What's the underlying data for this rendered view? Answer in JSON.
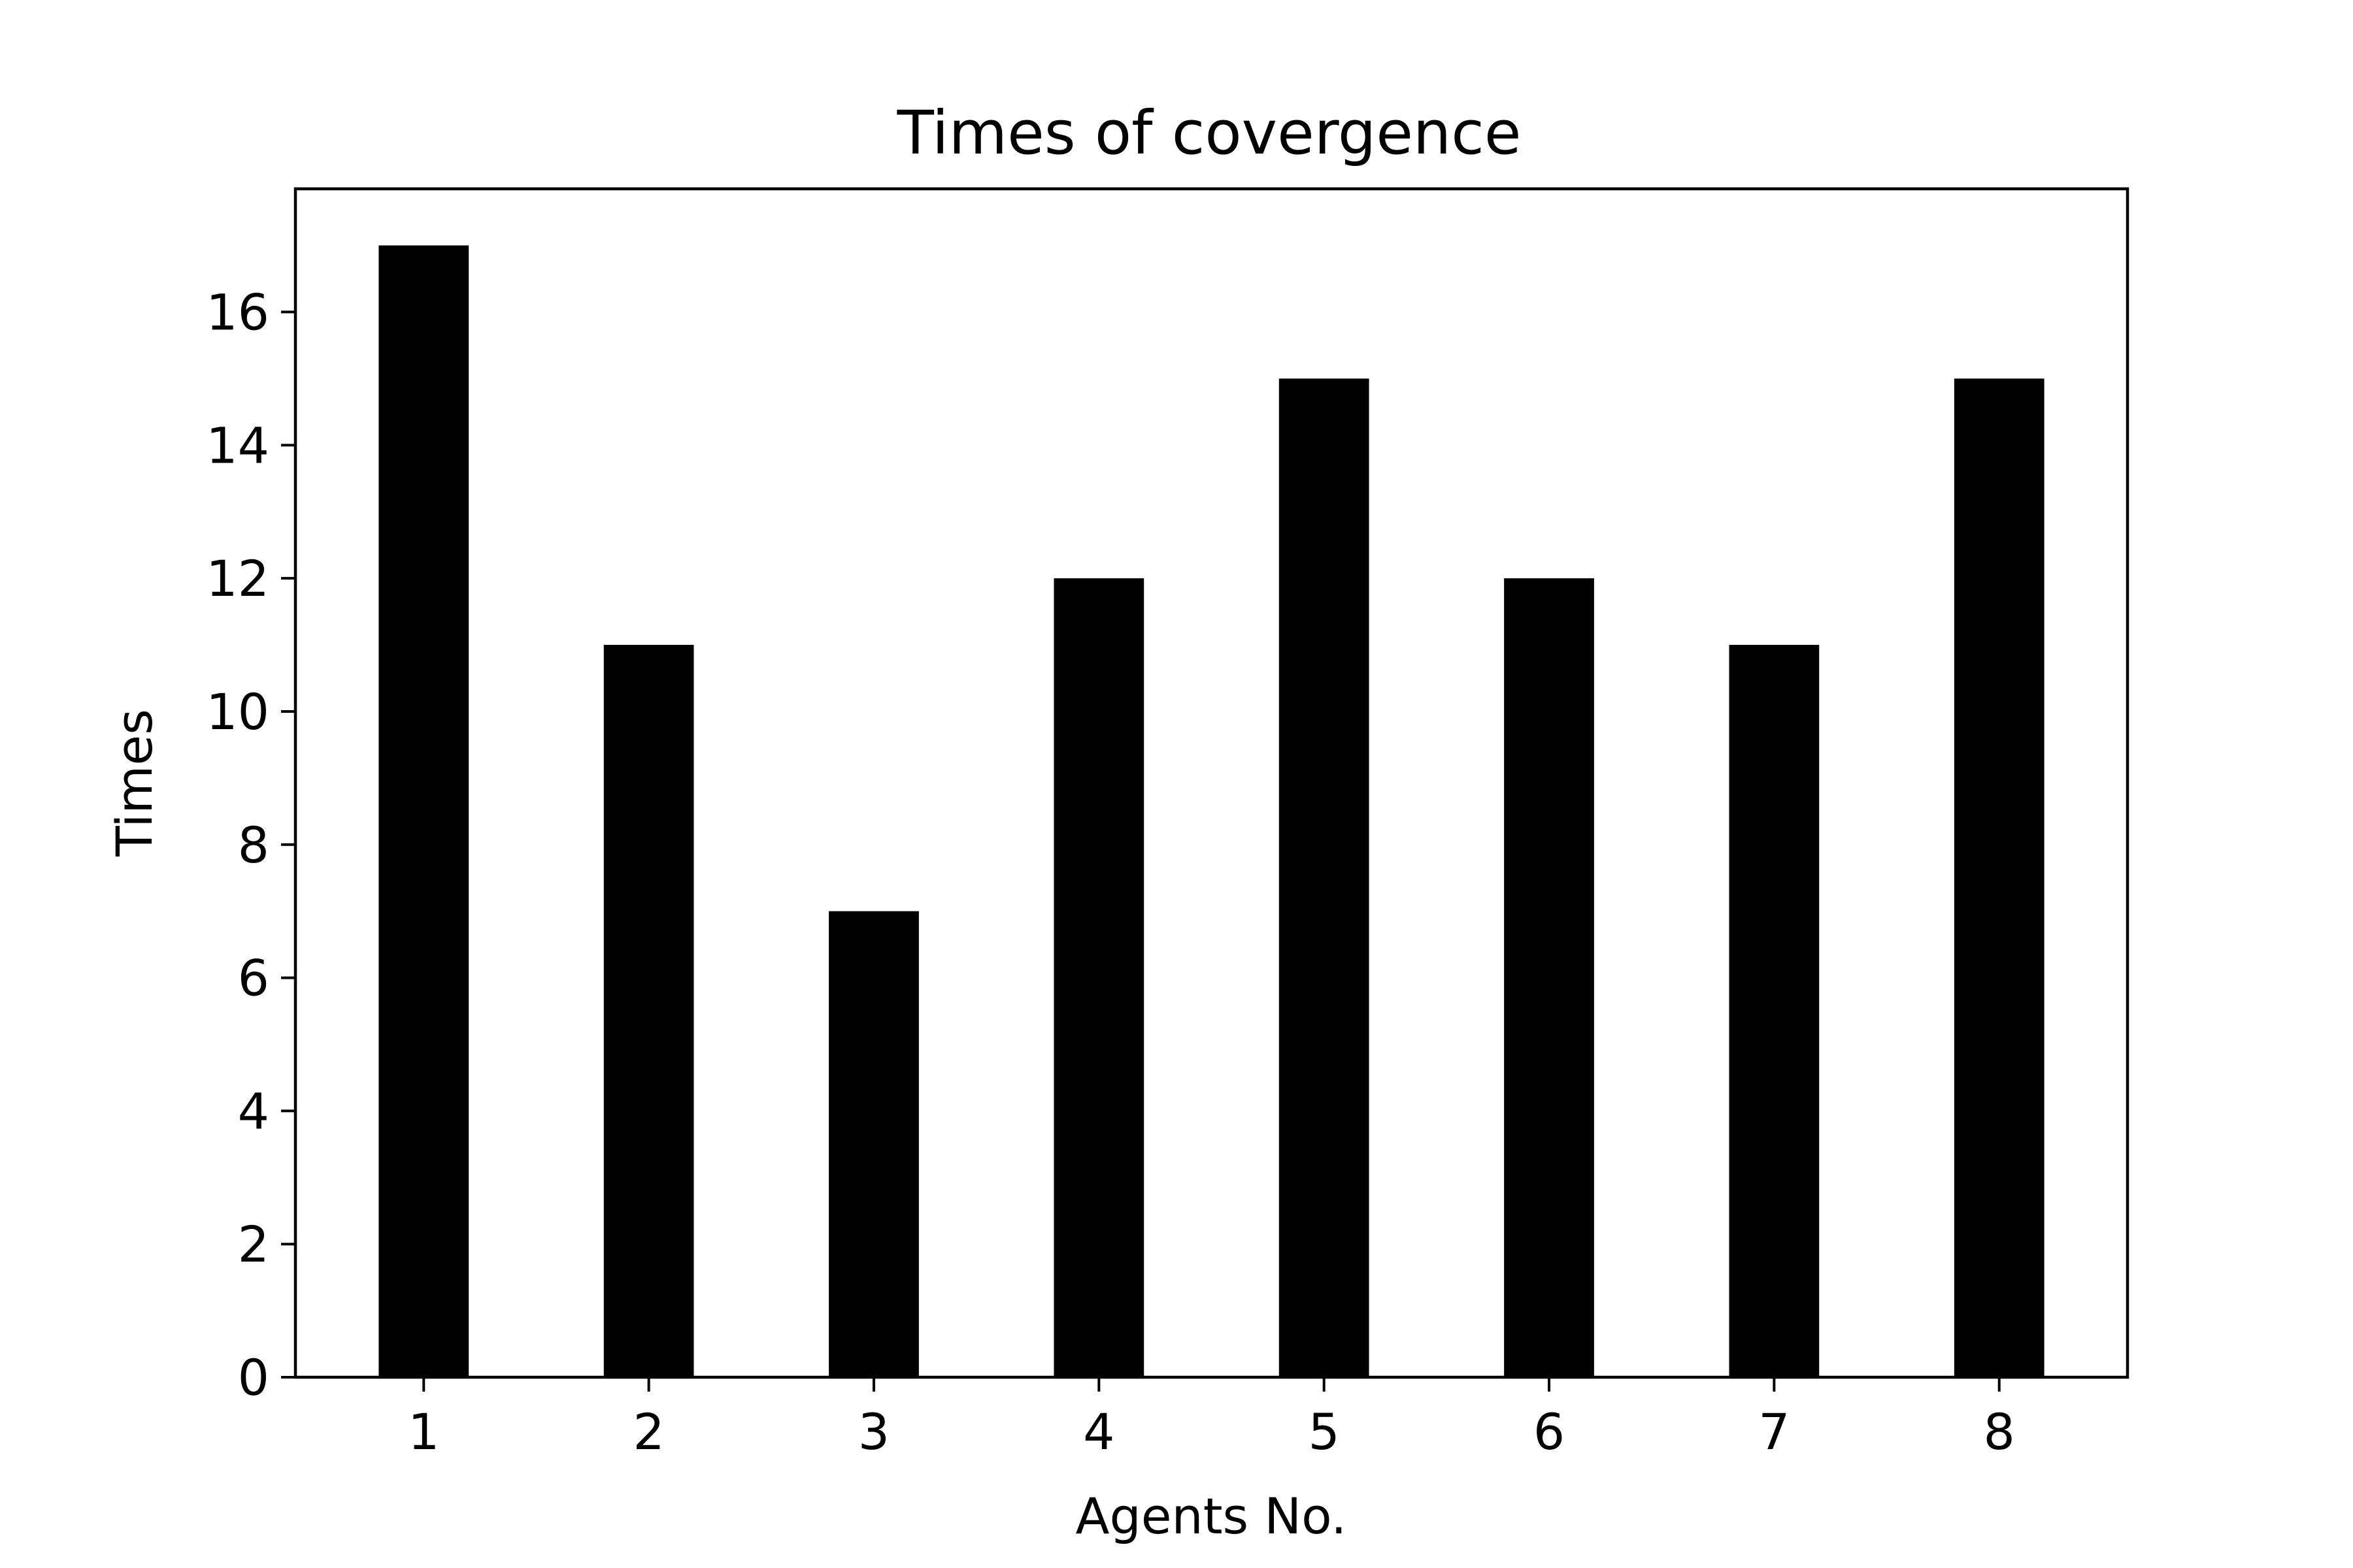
{
  "chart_data": {
    "type": "bar",
    "title": "Times of covergence",
    "xlabel": "Agents No.",
    "ylabel": "Times",
    "categories": [
      "1",
      "2",
      "3",
      "4",
      "5",
      "6",
      "7",
      "8"
    ],
    "values": [
      17,
      11,
      7,
      12,
      15,
      12,
      11,
      15
    ],
    "ylim": [
      0,
      17.85
    ],
    "yticks": [
      0,
      2,
      4,
      6,
      8,
      10,
      12,
      14,
      16
    ],
    "grid": false,
    "bar_color": "#000000"
  }
}
